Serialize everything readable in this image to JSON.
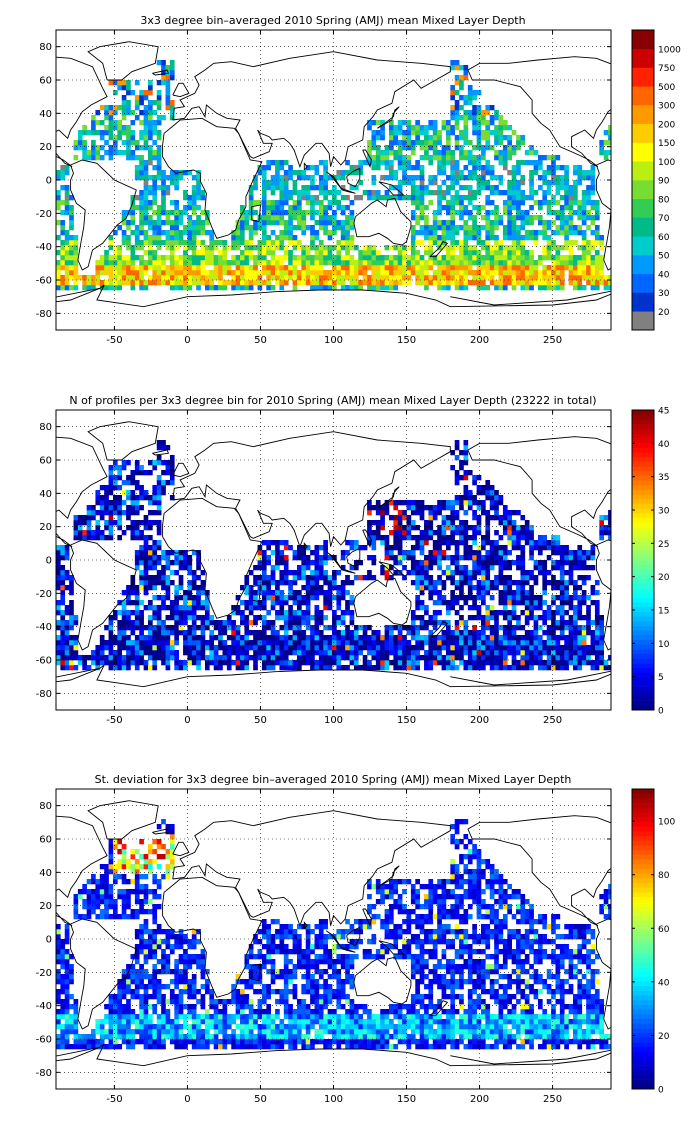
{
  "chart_data": [
    {
      "type": "heatmap",
      "title": "3x3 degree bin–averaged 2010 Spring (AMJ) mean Mixed Layer Depth",
      "xlabel": "",
      "ylabel": "",
      "xlim": [
        -90,
        290
      ],
      "ylim": [
        -90,
        90
      ],
      "x_ticks": [
        -50,
        0,
        50,
        100,
        150,
        200,
        250
      ],
      "y_ticks": [
        80,
        60,
        40,
        20,
        0,
        -20,
        -40,
        -60,
        -80
      ],
      "grid": true,
      "grid_style": "dotted",
      "colorbar": {
        "placement": "right",
        "scale": "categorical",
        "tick_labels": [
          "20",
          "30",
          "40",
          "50",
          "60",
          "70",
          "80",
          "90",
          "100",
          "150",
          "200",
          "300",
          "500",
          "750",
          "1000"
        ],
        "bottom_color": "#808080",
        "colors": [
          "#808080",
          "#0033cc",
          "#0066ff",
          "#0099ff",
          "#00cccc",
          "#00bb88",
          "#33cc55",
          "#77dd33",
          "#bbee11",
          "#ffff00",
          "#ffcc00",
          "#ff9900",
          "#ff6600",
          "#ff2200",
          "#cc0000",
          "#880000"
        ]
      }
    },
    {
      "type": "heatmap",
      "title": "N of profiles per 3x3 degree bin for 2010 Spring (AMJ) mean Mixed Layer Depth  (23222 in total)",
      "xlabel": "",
      "ylabel": "",
      "xlim": [
        -90,
        290
      ],
      "ylim": [
        -90,
        90
      ],
      "x_ticks": [
        -50,
        0,
        50,
        100,
        150,
        200,
        250
      ],
      "y_ticks": [
        80,
        60,
        40,
        20,
        0,
        -20,
        -40,
        -60,
        -80
      ],
      "grid": true,
      "grid_style": "dotted",
      "colorbar": {
        "placement": "right",
        "scale": "linear",
        "range": [
          0,
          45
        ],
        "tick_values": [
          0,
          5,
          10,
          15,
          20,
          25,
          30,
          35,
          40,
          45
        ],
        "colormap": "jet"
      }
    },
    {
      "type": "heatmap",
      "title": "St. deviation for 3x3 degree bin–averaged 2010 Spring (AMJ) mean Mixed Layer Depth",
      "xlabel": "",
      "ylabel": "",
      "xlim": [
        -90,
        290
      ],
      "ylim": [
        -90,
        90
      ],
      "x_ticks": [
        -50,
        0,
        50,
        100,
        150,
        200,
        250
      ],
      "y_ticks": [
        80,
        60,
        40,
        20,
        0,
        -20,
        -40,
        -60,
        -80
      ],
      "grid": true,
      "grid_style": "dotted",
      "colorbar": {
        "placement": "right",
        "scale": "linear",
        "range": [
          0,
          112
        ],
        "tick_values": [
          0,
          20,
          40,
          60,
          80,
          100
        ],
        "colormap": "jet"
      }
    }
  ]
}
